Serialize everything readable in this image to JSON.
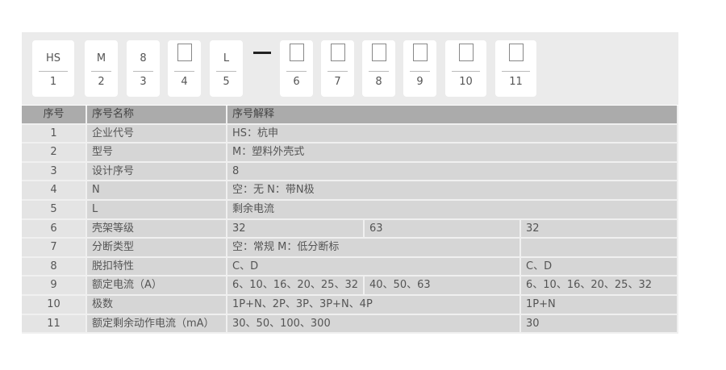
{
  "code_cards": [
    {
      "code": "HS",
      "index": "1"
    },
    {
      "code": "M",
      "index": "2"
    },
    {
      "code": "8",
      "index": "3"
    },
    {
      "code": "",
      "index": "4"
    },
    {
      "code": "L",
      "index": "5"
    },
    {
      "code": "",
      "index": "6"
    },
    {
      "code": "",
      "index": "7"
    },
    {
      "code": "",
      "index": "8"
    },
    {
      "code": "",
      "index": "9"
    },
    {
      "code": "",
      "index": "10"
    },
    {
      "code": "",
      "index": "11"
    }
  ],
  "table": {
    "headers": [
      "序号",
      "序号名称",
      "序号解释"
    ],
    "rows": [
      {
        "no": "1",
        "name": "企业代号",
        "cells": [
          "HS：杭申"
        ]
      },
      {
        "no": "2",
        "name": "型号",
        "cells": [
          "M：塑料外壳式"
        ]
      },
      {
        "no": "3",
        "name": "设计序号",
        "cells": [
          "8"
        ]
      },
      {
        "no": "4",
        "name": "N",
        "cells": [
          "空：无   N：带N极"
        ]
      },
      {
        "no": "5",
        "name": "L",
        "cells": [
          "剩余电流"
        ]
      },
      {
        "no": "6",
        "name": "壳架等级",
        "cells": [
          "32",
          "63",
          "32"
        ]
      },
      {
        "no": "7",
        "name": "分断类型",
        "cells": [
          "空：常规  M：低分断标",
          ""
        ]
      },
      {
        "no": "8",
        "name": "脱扣特性",
        "cells": [
          "C、D",
          "C、D"
        ]
      },
      {
        "no": "9",
        "name": "额定电流（A）",
        "cells": [
          "6、10、16、20、25、32",
          "40、50、63",
          "6、10、16、20、25、32"
        ]
      },
      {
        "no": "10",
        "name": "极数",
        "cells": [
          "1P+N、2P、3P、3P+N、4P",
          "1P+N"
        ]
      },
      {
        "no": "11",
        "name": "额定剩余动作电流（mA）",
        "cells": [
          "30、50、100、300",
          "30"
        ]
      }
    ]
  }
}
